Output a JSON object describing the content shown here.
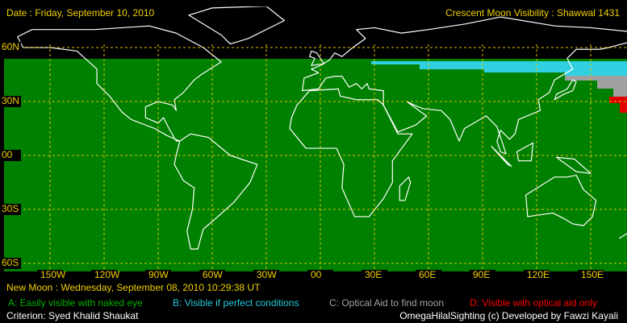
{
  "header": {
    "date": "Date : Friday, September 10, 2010",
    "title": "Crescent Moon Visibility : Shawwal  1431"
  },
  "map": {
    "lat_labels": [
      "60N",
      "30N",
      "00",
      "30S",
      "60S"
    ],
    "lon_labels": [
      "150W",
      "120W",
      "90W",
      "60W",
      "30W",
      "00",
      "30E",
      "60E",
      "90E",
      "120E",
      "150E"
    ]
  },
  "footer": {
    "new_moon": "New Moon : Wednesday, September 08, 2010  10:29:38  UT",
    "legend": [
      "A: Easily visible with naked eye",
      "B: Visible if perfect conditions",
      "C: Optical Aid to find moon",
      "D: Visible with optical aid only"
    ],
    "criterion": "Criterion: Syed Khalid Shaukat",
    "credit": "OmegaHilalSighting  (c)  Developed by Fawzi Kayali"
  }
}
